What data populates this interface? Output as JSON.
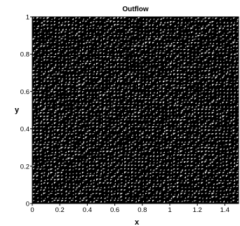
{
  "chart_data": {
    "type": "mesh",
    "title": "Outflow",
    "xlabel": "x",
    "ylabel": "y",
    "xlim": [
      0,
      1.5
    ],
    "ylim": [
      0,
      1
    ],
    "xticks": [
      "0",
      "0.2",
      "0.4",
      "0.6",
      "0.8",
      "1",
      "1.2",
      "1.4"
    ],
    "yticks": [
      "0",
      "0.2",
      "0.4",
      "0.6",
      "0.8",
      "1"
    ],
    "grid": false,
    "legend": "none",
    "mesh_color": "#000000",
    "background_color": "#ffffff"
  }
}
